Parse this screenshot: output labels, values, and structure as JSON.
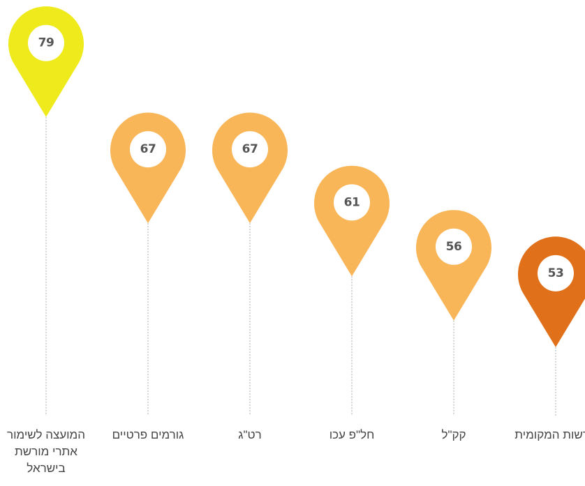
{
  "chart_data": {
    "type": "pin",
    "categories": [
      "המועצה לשימור אתרי מורשת בישראל",
      "גורמים פרטיים",
      "רט\"ג",
      "חל\"פ עכו",
      "קק\"ל",
      "הרשות המקומית"
    ],
    "values": [
      79,
      67,
      67,
      61,
      56,
      53
    ],
    "colors": [
      "#eeea1c",
      "#f8b658",
      "#f8b658",
      "#f8b658",
      "#f8b658",
      "#e07019"
    ],
    "ylim": [
      40,
      80
    ]
  }
}
